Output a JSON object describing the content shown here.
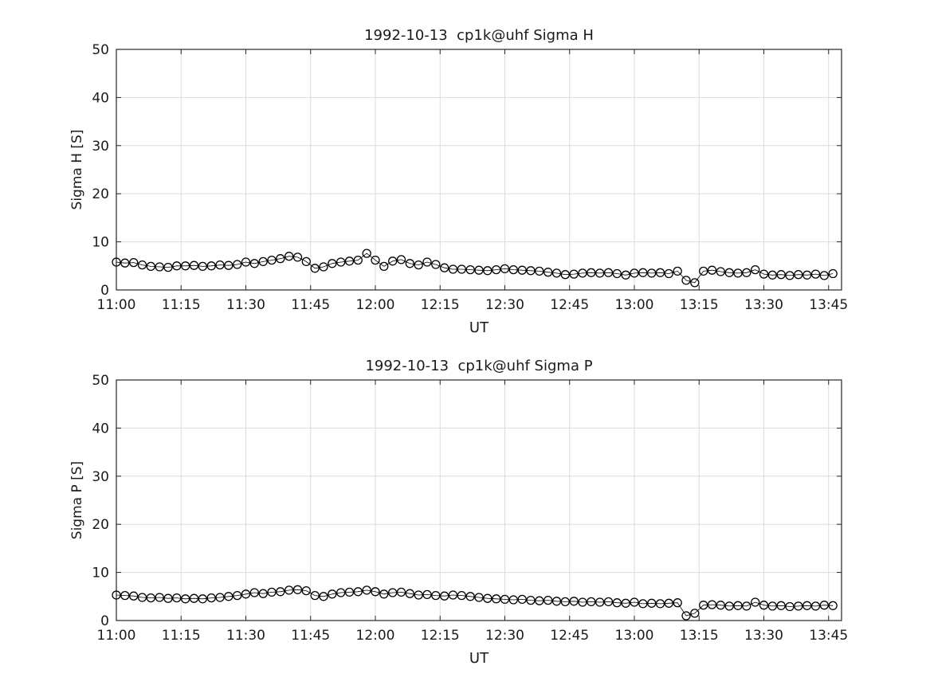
{
  "page": {
    "background": "#ffffff"
  },
  "chart_data": [
    {
      "type": "scatter",
      "title": "1992-10-13  cp1k@uhf Sigma H",
      "xlabel": "UT",
      "ylabel": "Sigma H [S]",
      "ylim": [
        0,
        50
      ],
      "yticks": [
        0,
        10,
        20,
        30,
        40,
        50
      ],
      "xlim_minutes": [
        660,
        828
      ],
      "xtick_minutes": [
        660,
        675,
        690,
        705,
        720,
        735,
        750,
        765,
        780,
        795,
        810,
        825
      ],
      "xtick_labels": [
        "11:00",
        "11:15",
        "11:30",
        "11:45",
        "12:00",
        "12:15",
        "12:30",
        "12:45",
        "13:00",
        "13:15",
        "13:30",
        "13:45"
      ],
      "grid": true,
      "grid_color": "#dbdbdb",
      "marker": "open-circle",
      "marker_color": "#000000",
      "x_minutes": [
        660,
        662,
        664,
        666,
        668,
        670,
        672,
        674,
        676,
        678,
        680,
        682,
        684,
        686,
        688,
        690,
        692,
        694,
        696,
        698,
        700,
        702,
        704,
        706,
        708,
        710,
        712,
        714,
        716,
        718,
        720,
        722,
        724,
        726,
        728,
        730,
        732,
        734,
        736,
        738,
        740,
        742,
        744,
        746,
        748,
        750,
        752,
        754,
        756,
        758,
        760,
        762,
        764,
        766,
        768,
        770,
        772,
        774,
        776,
        778,
        780,
        782,
        784,
        786,
        788,
        790,
        792,
        794,
        796,
        798,
        800,
        802,
        804,
        806,
        808,
        810,
        812,
        814,
        816,
        818,
        820,
        822,
        824,
        826
      ],
      "values": [
        5.8,
        5.6,
        5.7,
        5.2,
        4.9,
        4.8,
        4.7,
        5.0,
        5.0,
        5.1,
        4.9,
        5.0,
        5.2,
        5.1,
        5.3,
        5.8,
        5.5,
        5.9,
        6.2,
        6.5,
        7.0,
        6.8,
        5.9,
        4.5,
        4.8,
        5.5,
        5.8,
        6.0,
        6.2,
        7.6,
        6.2,
        4.9,
        6.0,
        6.3,
        5.5,
        5.2,
        5.8,
        5.3,
        4.6,
        4.3,
        4.3,
        4.2,
        4.1,
        4.0,
        4.2,
        4.4,
        4.2,
        4.1,
        4.0,
        3.9,
        3.7,
        3.5,
        3.2,
        3.3,
        3.5,
        3.6,
        3.5,
        3.6,
        3.4,
        3.1,
        3.5,
        3.6,
        3.5,
        3.6,
        3.4,
        3.9,
        2.0,
        1.5,
        3.9,
        4.1,
        3.8,
        3.6,
        3.5,
        3.6,
        4.2,
        3.3,
        3.1,
        3.2,
        3.0,
        3.2,
        3.1,
        3.3,
        3.0,
        3.4
      ]
    },
    {
      "type": "scatter",
      "title": "1992-10-13  cp1k@uhf Sigma P",
      "xlabel": "UT",
      "ylabel": "Sigma P [S]",
      "ylim": [
        0,
        50
      ],
      "yticks": [
        0,
        10,
        20,
        30,
        40,
        50
      ],
      "xlim_minutes": [
        660,
        828
      ],
      "xtick_minutes": [
        660,
        675,
        690,
        705,
        720,
        735,
        750,
        765,
        780,
        795,
        810,
        825
      ],
      "xtick_labels": [
        "11:00",
        "11:15",
        "11:30",
        "11:45",
        "12:00",
        "12:15",
        "12:30",
        "12:45",
        "13:00",
        "13:15",
        "13:30",
        "13:45"
      ],
      "grid": true,
      "grid_color": "#dbdbdb",
      "marker": "open-circle",
      "marker_color": "#000000",
      "x_minutes": [
        660,
        662,
        664,
        666,
        668,
        670,
        672,
        674,
        676,
        678,
        680,
        682,
        684,
        686,
        688,
        690,
        692,
        694,
        696,
        698,
        700,
        702,
        704,
        706,
        708,
        710,
        712,
        714,
        716,
        718,
        720,
        722,
        724,
        726,
        728,
        730,
        732,
        734,
        736,
        738,
        740,
        742,
        744,
        746,
        748,
        750,
        752,
        754,
        756,
        758,
        760,
        762,
        764,
        766,
        768,
        770,
        772,
        774,
        776,
        778,
        780,
        782,
        784,
        786,
        788,
        790,
        792,
        794,
        796,
        798,
        800,
        802,
        804,
        806,
        808,
        810,
        812,
        814,
        816,
        818,
        820,
        822,
        824,
        826
      ],
      "values": [
        5.3,
        5.2,
        5.1,
        4.8,
        4.7,
        4.8,
        4.6,
        4.7,
        4.5,
        4.6,
        4.5,
        4.7,
        4.8,
        5.0,
        5.2,
        5.5,
        5.8,
        5.6,
        5.9,
        6.0,
        6.3,
        6.4,
        6.2,
        5.2,
        5.0,
        5.5,
        5.8,
        5.9,
        6.0,
        6.3,
        6.0,
        5.5,
        5.8,
        5.9,
        5.6,
        5.3,
        5.4,
        5.2,
        5.1,
        5.3,
        5.2,
        5.0,
        4.8,
        4.6,
        4.5,
        4.4,
        4.3,
        4.4,
        4.2,
        4.1,
        4.2,
        4.0,
        3.9,
        4.0,
        3.8,
        3.9,
        3.8,
        3.9,
        3.7,
        3.6,
        3.8,
        3.5,
        3.6,
        3.5,
        3.6,
        3.7,
        1.0,
        1.5,
        3.2,
        3.3,
        3.2,
        3.0,
        3.1,
        3.0,
        3.8,
        3.2,
        3.0,
        3.1,
        2.9,
        3.0,
        3.1,
        3.0,
        3.2,
        3.1
      ]
    }
  ]
}
